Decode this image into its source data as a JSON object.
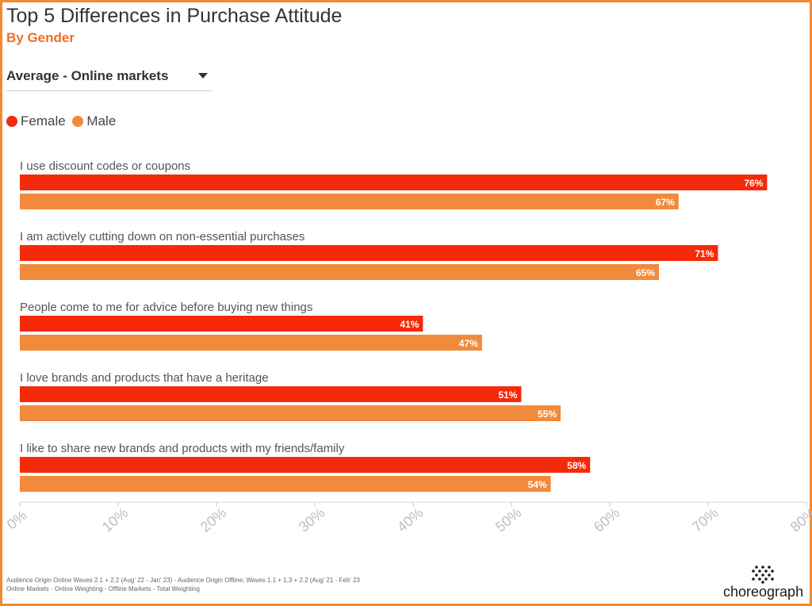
{
  "header": {
    "title": "Top 5 Differences in Purchase Attitude",
    "subtitle": "By Gender"
  },
  "filter": {
    "selected": "Average - Online markets"
  },
  "legend": [
    {
      "label": "Female",
      "color": "#f52a0a"
    },
    {
      "label": "Male",
      "color": "#f28a3c"
    }
  ],
  "chart_data": {
    "type": "bar",
    "orientation": "horizontal",
    "categories": [
      "I use discount codes or coupons",
      "I am actively cutting down on non-essential purchases",
      "People come to me for advice before buying new things",
      "I love brands and products that have a heritage",
      "I like to share new brands and products with my friends/family"
    ],
    "series": [
      {
        "name": "Female",
        "color": "#f52a0a",
        "values": [
          76,
          71,
          41,
          51,
          58
        ],
        "labels": [
          "76%",
          "71%",
          "41%",
          "51%",
          "58%"
        ]
      },
      {
        "name": "Male",
        "color": "#f28a3c",
        "values": [
          67,
          65,
          47,
          55,
          54
        ],
        "labels": [
          "67%",
          "65%",
          "47%",
          "55%",
          "54%"
        ]
      }
    ],
    "xlim": [
      0,
      80
    ],
    "xticks": [
      0,
      10,
      20,
      30,
      40,
      50,
      60,
      70,
      80
    ],
    "xtick_labels": [
      "0%",
      "10%",
      "20%",
      "30%",
      "40%",
      "50%",
      "60%",
      "70%",
      "80%"
    ],
    "grid": false,
    "legend_position": "top-left"
  },
  "footnote": {
    "line1": "Audience Origin Online Waves 2.1 + 2.2 (Aug' 22 - Jan' 23) - Audience Origin Offline; Waves 1.1 + 1.3 + 2.2 (Aug' 21 - Feb' 23",
    "line2": "Online Markets - Online Weighting - Offline Markets - Total Weighting"
  },
  "logo": {
    "text": "choreograph",
    "icon": "choreograph-dots-icon"
  }
}
